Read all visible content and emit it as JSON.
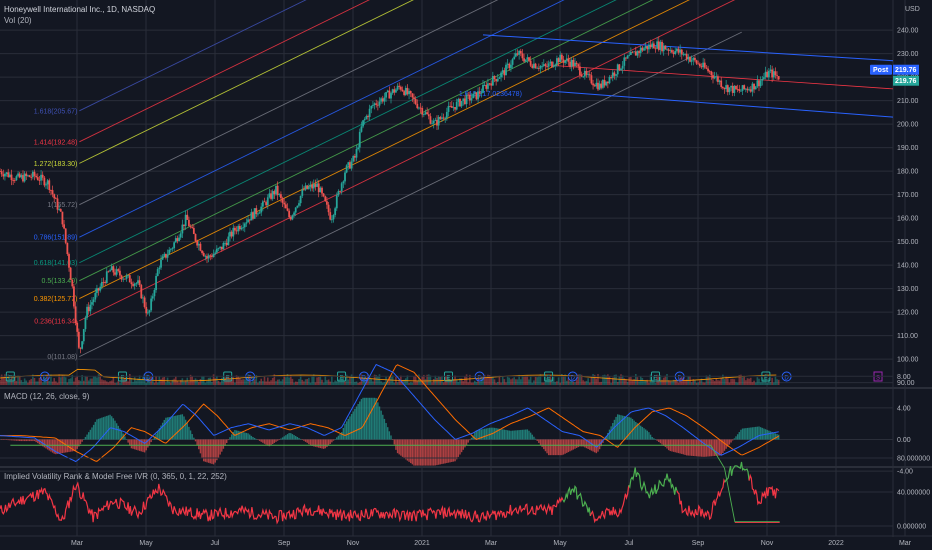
{
  "header": {
    "main_title": "Honeywell International Inc., 1D, NASDAQ",
    "vol_label": "Vol (20)",
    "macd_label": "MACD (12, 26, close, 9)",
    "ivr_label": "Implied Volatility Rank & Model Free IVR (0, 365, 0, 1, 22, 252)"
  },
  "chart_data": [
    {
      "type": "candlestick",
      "title": "Honeywell International Inc., 1D, NASDAQ",
      "currency": "USD",
      "ylim": [
        88,
        242
      ],
      "y_ticks": [
        90,
        100,
        110,
        120,
        130,
        140,
        150,
        160,
        170,
        180,
        190,
        200,
        210,
        220,
        230,
        240
      ],
      "y_tick_labels": [
        "90.00",
        "100.00",
        "110.00",
        "120.00",
        "130.00",
        "140.00",
        "150.00",
        "160.00",
        "170.00",
        "180.00",
        "190.00",
        "200.00",
        "210.00",
        "220.00",
        "230.00",
        "240.00"
      ],
      "x_labels": [
        "Mar",
        "May",
        "Jul",
        "Sep",
        "Nov",
        "2021",
        "Mar",
        "May",
        "Jul",
        "Sep",
        "Nov",
        "2022",
        "Mar"
      ],
      "x_tick_months": [
        2,
        4,
        6,
        8,
        10,
        12,
        14,
        16,
        18,
        20,
        22,
        24,
        26
      ],
      "last_price": "219.76",
      "post_label": "Post",
      "post_price": "219.76",
      "close_anchors": [
        [
          0,
          180
        ],
        [
          0.5,
          177
        ],
        [
          1,
          178
        ],
        [
          1.4,
          175
        ],
        [
          1.8,
          160
        ],
        [
          2.1,
          130
        ],
        [
          2.3,
          102
        ],
        [
          2.5,
          120
        ],
        [
          2.8,
          128
        ],
        [
          3.2,
          138
        ],
        [
          3.6,
          135
        ],
        [
          4.0,
          132
        ],
        [
          4.3,
          118
        ],
        [
          4.6,
          140
        ],
        [
          5.0,
          148
        ],
        [
          5.4,
          160
        ],
        [
          5.6,
          153
        ],
        [
          6.0,
          143
        ],
        [
          6.4,
          147
        ],
        [
          6.8,
          155
        ],
        [
          7.2,
          160
        ],
        [
          7.6,
          165
        ],
        [
          8.0,
          172
        ],
        [
          8.4,
          160
        ],
        [
          8.8,
          172
        ],
        [
          9.2,
          174
        ],
        [
          9.6,
          160
        ],
        [
          10.0,
          180
        ],
        [
          10.3,
          186
        ],
        [
          10.5,
          200
        ],
        [
          10.8,
          208
        ],
        [
          11.2,
          212
        ],
        [
          11.6,
          216
        ],
        [
          12.0,
          210
        ],
        [
          12.6,
          200
        ],
        [
          13.0,
          206
        ],
        [
          13.4,
          210
        ],
        [
          13.8,
          212
        ],
        [
          14.2,
          218
        ],
        [
          14.6,
          222
        ],
        [
          15.0,
          230
        ],
        [
          15.4,
          226
        ],
        [
          15.8,
          224
        ],
        [
          16.2,
          228
        ],
        [
          16.6,
          226
        ],
        [
          17.0,
          220
        ],
        [
          17.4,
          216
        ],
        [
          17.8,
          222
        ],
        [
          18.2,
          228
        ],
        [
          18.6,
          232
        ],
        [
          19.0,
          234
        ],
        [
          19.4,
          232
        ],
        [
          19.8,
          230
        ],
        [
          20.2,
          226
        ],
        [
          20.6,
          222
        ],
        [
          21.0,
          216
        ],
        [
          21.4,
          214
        ],
        [
          21.8,
          216
        ],
        [
          22.0,
          218
        ],
        [
          22.3,
          222
        ],
        [
          22.6,
          219.76
        ]
      ],
      "volume_markers": [
        {
          "label": "E",
          "month": 0.3
        },
        {
          "label": "D",
          "month": 1.3
        },
        {
          "label": "E",
          "month": 3.55
        },
        {
          "label": "D",
          "month": 4.3
        },
        {
          "label": "E",
          "month": 6.6
        },
        {
          "label": "D",
          "month": 7.25
        },
        {
          "label": "E",
          "month": 9.9
        },
        {
          "label": "D",
          "month": 10.55
        },
        {
          "label": "E",
          "month": 13.0
        },
        {
          "label": "D",
          "month": 13.9
        },
        {
          "label": "E",
          "month": 15.9
        },
        {
          "label": "D",
          "month": 16.6
        },
        {
          "label": "E",
          "month": 19.0
        },
        {
          "label": "D",
          "month": 19.7
        },
        {
          "label": "E",
          "month": 22.2
        },
        {
          "label": "D",
          "month": 22.8
        },
        {
          "label": "E",
          "month": 25.45
        }
      ]
    },
    {
      "type": "fibonacci_channel",
      "levels": [
        {
          "ratio": "0",
          "value": "101.08",
          "color": "#787b86"
        },
        {
          "ratio": "0.236",
          "value": "116.34",
          "color": "#f23645"
        },
        {
          "ratio": "0.382",
          "value": "125.77",
          "color": "#ff9800"
        },
        {
          "ratio": "0.5",
          "value": "133.40",
          "color": "#4caf50"
        },
        {
          "ratio": "0.618",
          "value": "141.03",
          "color": "#089981"
        },
        {
          "ratio": "0.786",
          "value": "151.89",
          "color": "#2962ff"
        },
        {
          "ratio": "1",
          "value": "165.72",
          "color": "#787b86"
        },
        {
          "ratio": "1.272",
          "value": "183.30",
          "color": "#cddc39"
        },
        {
          "ratio": "1.414",
          "value": "192.48",
          "color": "#f23645"
        },
        {
          "ratio": "1.618",
          "value": "205.67",
          "color": "#3f51b5"
        }
      ],
      "extra_label": "1.618(217.0236478)"
    },
    {
      "type": "line",
      "title": "MACD (12, 26, close, 9)",
      "ylim": [
        -5,
        10
      ],
      "y_ticks": [
        8,
        4,
        0,
        -4
      ],
      "y_tick_labels": [
        "8.00",
        "4.00",
        "0.00",
        "-4.00"
      ],
      "series": [],
      "macd_anchors": [
        [
          0,
          0.5
        ],
        [
          1,
          0.2
        ],
        [
          1.6,
          -1.5
        ],
        [
          2.2,
          -2.8
        ],
        [
          2.7,
          -1
        ],
        [
          3.2,
          1.5
        ],
        [
          3.6,
          1
        ],
        [
          4.2,
          -0.5
        ],
        [
          4.8,
          2
        ],
        [
          5.3,
          4.5
        ],
        [
          5.7,
          3
        ],
        [
          6.2,
          0.5
        ],
        [
          6.7,
          1.5
        ],
        [
          7.2,
          2
        ],
        [
          7.8,
          1.2
        ],
        [
          8.4,
          2
        ],
        [
          8.9,
          1.5
        ],
        [
          9.4,
          0.5
        ],
        [
          9.9,
          1.5
        ],
        [
          10.4,
          5.5
        ],
        [
          10.9,
          9.5
        ],
        [
          11.4,
          8.5
        ],
        [
          11.9,
          6
        ],
        [
          12.6,
          2.5
        ],
        [
          13.2,
          0
        ],
        [
          13.7,
          0.8
        ],
        [
          14.2,
          2
        ],
        [
          14.8,
          3
        ],
        [
          15.3,
          4
        ],
        [
          15.8,
          2.5
        ],
        [
          16.3,
          1
        ],
        [
          16.8,
          0.5
        ],
        [
          17.3,
          -1
        ],
        [
          17.8,
          1.5
        ],
        [
          18.3,
          3.5
        ],
        [
          18.8,
          4
        ],
        [
          19.3,
          3
        ],
        [
          19.8,
          1.5
        ],
        [
          20.4,
          -0.5
        ],
        [
          20.9,
          -2
        ],
        [
          21.4,
          -1
        ],
        [
          22.0,
          0.5
        ],
        [
          22.6,
          1
        ]
      ],
      "signal_lag": 0.6,
      "hist_ylim": [
        -5,
        10
      ]
    },
    {
      "type": "line",
      "title": "Implied Volatility Rank & Model Free IVR (0, 365, 0, 1, 22, 252)",
      "ylim": [
        -5,
        100
      ],
      "y_ticks": [
        80,
        40,
        0
      ],
      "y_tick_labels": [
        "80.000000",
        "40.000000",
        "0.000000"
      ],
      "ivr_anchors": [
        [
          0,
          18
        ],
        [
          0.7,
          32
        ],
        [
          1.3,
          40
        ],
        [
          1.8,
          5
        ],
        [
          2.2,
          50
        ],
        [
          2.7,
          10
        ],
        [
          3.3,
          30
        ],
        [
          4,
          15
        ],
        [
          4.6,
          45
        ],
        [
          5,
          20
        ],
        [
          6,
          12
        ],
        [
          7,
          18
        ],
        [
          8,
          10
        ],
        [
          9,
          20
        ],
        [
          10,
          12
        ],
        [
          11,
          15
        ],
        [
          12,
          12
        ],
        [
          13,
          16
        ],
        [
          14,
          10
        ],
        [
          15,
          20
        ],
        [
          16,
          18
        ],
        [
          16.6,
          45
        ],
        [
          17.2,
          10
        ],
        [
          18,
          18
        ],
        [
          18.4,
          65
        ],
        [
          18.8,
          35
        ],
        [
          19.4,
          58
        ],
        [
          19.8,
          20
        ],
        [
          20.6,
          15
        ],
        [
          21.1,
          62
        ],
        [
          21.6,
          72
        ],
        [
          22.0,
          25
        ],
        [
          22.3,
          45
        ],
        [
          22.6,
          35
        ]
      ],
      "green_segments": [
        [
          16.3,
          17.1
        ],
        [
          18.2,
          19.6
        ],
        [
          21.0,
          21.7
        ]
      ],
      "limit_lines": [
        {
          "value": 95,
          "color": "#4caf50"
        },
        {
          "value": 0,
          "color": "#f23645"
        }
      ]
    }
  ],
  "colors": {
    "bg": "#131722",
    "grid": "#2a2e39",
    "up": "#26a69a",
    "down": "#ef5350",
    "axis_text": "#b2b5be",
    "channel_blue": "#2962ff",
    "channel_red": "#f23645",
    "macd_line": "#2962ff",
    "signal_line": "#ff6d00",
    "ivr_red": "#f23645",
    "ivr_green": "#4caf50",
    "earnings_marker": "#26a69a",
    "dividend_marker": "#2962ff",
    "split_marker": "#9c27b0",
    "price_tag": "#26a69a",
    "post_tag": "#2962ff"
  }
}
